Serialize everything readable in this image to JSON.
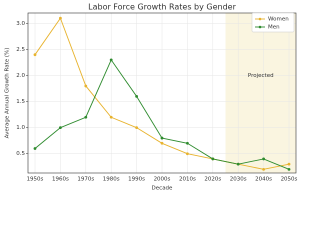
{
  "chart_data": {
    "type": "line",
    "title": "Labor Force Growth Rates by Gender",
    "x_label": "Decade",
    "y_label": "Average Annual Growth Rate (%)",
    "categories": [
      "1950s",
      "1960s",
      "1970s",
      "1980s",
      "1990s",
      "2000s",
      "2010s",
      "2020s",
      "2030s",
      "2040s",
      "2050s"
    ],
    "series": [
      {
        "name": "Women",
        "color": "#e8b32e",
        "values": [
          2.4,
          3.1,
          1.8,
          1.2,
          1.0,
          0.7,
          0.5,
          0.4,
          0.3,
          0.2,
          0.3
        ]
      },
      {
        "name": "Men",
        "color": "#2e8b2e",
        "values": [
          0.6,
          1.0,
          1.2,
          2.3,
          1.6,
          0.8,
          0.7,
          0.4,
          0.3,
          0.4,
          0.2
        ]
      }
    ],
    "ylim": [
      0.13,
      3.2
    ],
    "yticks": [
      0.5,
      {
        "value": 1.0,
        "label": "1.0"
      },
      1.5,
      {
        "value": 2.0,
        "label": "2.0"
      },
      2.5,
      {
        "value": 3.0,
        "label": "3.0"
      }
    ],
    "grid": true,
    "legend": "upper right",
    "annotation": "Projected"
  }
}
